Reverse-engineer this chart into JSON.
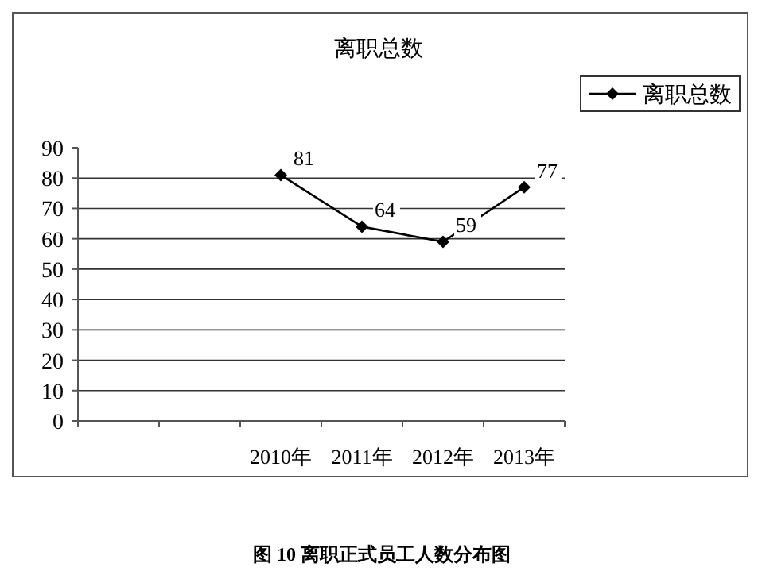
{
  "chart_data": {
    "type": "line",
    "title": "离职总数",
    "categories": [
      null,
      null,
      "2010年",
      "2011年",
      "2012年",
      "2013年"
    ],
    "series": [
      {
        "name": "离职总数",
        "color": "#000000",
        "values": [
          null,
          null,
          81,
          64,
          59,
          77
        ]
      }
    ],
    "ylim": [
      0,
      90
    ],
    "yticks": [
      0,
      10,
      20,
      30,
      40,
      50,
      60,
      70,
      80,
      90
    ],
    "grid": "y",
    "legend": "top right",
    "marker": "diamond",
    "line_style": "solid",
    "data_labels": true,
    "annotations": [
      "图 10 离职正式员工人数分布图"
    ]
  }
}
